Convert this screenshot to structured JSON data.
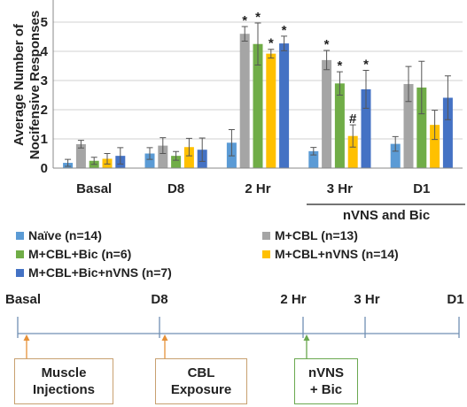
{
  "chart_data": {
    "type": "bar",
    "ylabel": "Average Number of\nNocifensive Responses",
    "ylim": [
      0,
      5
    ],
    "yticks": [
      "0",
      "1",
      "2",
      "3",
      "4",
      "5"
    ],
    "categories": [
      "Basal",
      "D8",
      "2 Hr",
      "3 Hr",
      "D1"
    ],
    "group_label": "nVNS and Bic",
    "grid": true,
    "legend_position": "bottom",
    "series": [
      {
        "name": "Naïve (n=14)",
        "color": "#5b9bd5",
        "values": [
          0.18,
          0.5,
          0.87,
          0.58,
          0.83
        ],
        "errors": [
          0.12,
          0.2,
          0.45,
          0.13,
          0.25
        ],
        "marks": [
          "",
          "",
          "",
          "",
          ""
        ]
      },
      {
        "name": "M+CBL (n=13)",
        "color": "#a5a5a5",
        "values": [
          0.82,
          0.77,
          4.6,
          3.7,
          2.88
        ],
        "errors": [
          0.13,
          0.27,
          0.25,
          0.33,
          0.6
        ],
        "marks": [
          "",
          "",
          "*",
          "*",
          ""
        ]
      },
      {
        "name": "M+CBL+Bic (n=6)",
        "color": "#70ad47",
        "values": [
          0.25,
          0.42,
          4.25,
          2.9,
          2.76
        ],
        "errors": [
          0.12,
          0.15,
          0.72,
          0.4,
          0.9
        ],
        "marks": [
          "",
          "",
          "*",
          "*",
          ""
        ]
      },
      {
        "name": "M+CBL+nVNS (n=14)",
        "color": "#ffc000",
        "values": [
          0.32,
          0.72,
          3.92,
          1.1,
          1.48
        ],
        "errors": [
          0.18,
          0.3,
          0.15,
          0.38,
          0.5
        ],
        "marks": [
          "",
          "",
          "*",
          "#",
          ""
        ]
      },
      {
        "name": "M+CBL+Bic+nVNS (n=7)",
        "color": "#4472c4",
        "values": [
          0.42,
          0.63,
          4.27,
          2.7,
          2.41
        ],
        "errors": [
          0.28,
          0.4,
          0.25,
          0.65,
          0.75
        ],
        "marks": [
          "",
          "",
          "*",
          "*",
          ""
        ]
      }
    ]
  },
  "timeline": {
    "labels": [
      "Basal",
      "D8",
      "2 Hr",
      "3 Hr",
      "D1"
    ],
    "events": [
      {
        "label_lines": [
          "Muscle",
          "Injections"
        ],
        "color": "#e69138"
      },
      {
        "label_lines": [
          "CBL",
          "Exposure"
        ],
        "color": "#e69138"
      },
      {
        "label_lines": [
          "nVNS",
          "+ Bic"
        ],
        "color": "#6aa84f"
      }
    ]
  }
}
